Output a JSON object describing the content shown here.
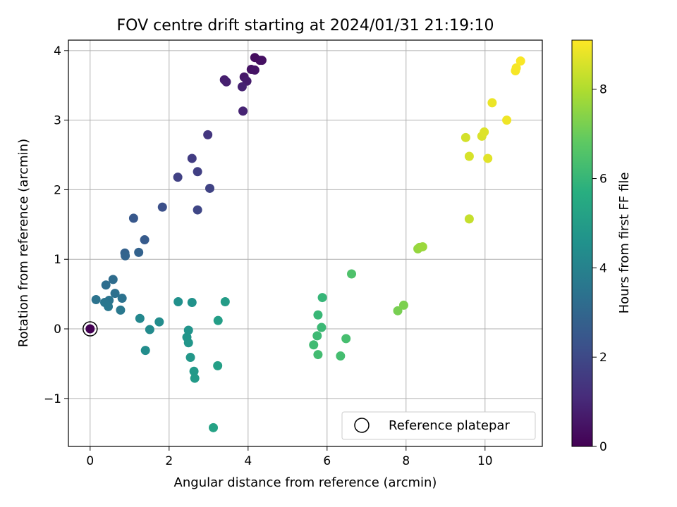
{
  "chart_data": {
    "type": "scatter",
    "title": "FOV centre drift starting at 2024/01/31 21:19:10",
    "xlabel": "Angular distance from reference (arcmin)",
    "ylabel": "Rotation from reference (arcmin)",
    "xlim": [
      -0.55,
      11.45
    ],
    "ylim": [
      -1.69,
      4.15
    ],
    "xticks": [
      0,
      2,
      4,
      6,
      8,
      10
    ],
    "yticks": [
      -1,
      0,
      1,
      2,
      3,
      4
    ],
    "grid": true,
    "colormap": "viridis",
    "colorbar": {
      "label": "Hours from first FF file",
      "range": [
        0,
        9.1
      ],
      "ticks": [
        0,
        2,
        4,
        6,
        8
      ]
    },
    "legend": {
      "position": "lower-right",
      "entries": [
        "Reference platepar"
      ]
    },
    "reference": {
      "x": 0,
      "y": 0,
      "hours": 0
    },
    "points": [
      {
        "x": 0.0,
        "y": 0.0,
        "h": 0.0
      },
      {
        "x": 4.17,
        "y": 3.9,
        "h": 0.3
      },
      {
        "x": 4.3,
        "y": 3.86,
        "h": 0.35
      },
      {
        "x": 4.35,
        "y": 3.86,
        "h": 0.4
      },
      {
        "x": 4.08,
        "y": 3.73,
        "h": 0.45
      },
      {
        "x": 4.17,
        "y": 3.72,
        "h": 0.5
      },
      {
        "x": 3.9,
        "y": 3.62,
        "h": 0.6
      },
      {
        "x": 3.97,
        "y": 3.56,
        "h": 0.7
      },
      {
        "x": 3.4,
        "y": 3.58,
        "h": 0.75
      },
      {
        "x": 3.45,
        "y": 3.55,
        "h": 0.8
      },
      {
        "x": 3.85,
        "y": 3.48,
        "h": 0.85
      },
      {
        "x": 3.87,
        "y": 3.13,
        "h": 0.9
      },
      {
        "x": 2.98,
        "y": 2.79,
        "h": 1.4
      },
      {
        "x": 2.58,
        "y": 2.45,
        "h": 1.6
      },
      {
        "x": 2.72,
        "y": 2.26,
        "h": 1.7
      },
      {
        "x": 2.22,
        "y": 2.18,
        "h": 1.75
      },
      {
        "x": 3.03,
        "y": 2.02,
        "h": 1.8
      },
      {
        "x": 2.72,
        "y": 1.71,
        "h": 1.9
      },
      {
        "x": 1.83,
        "y": 1.75,
        "h": 2.2
      },
      {
        "x": 1.1,
        "y": 1.59,
        "h": 2.5
      },
      {
        "x": 1.38,
        "y": 1.28,
        "h": 2.6
      },
      {
        "x": 0.88,
        "y": 1.09,
        "h": 2.8
      },
      {
        "x": 1.23,
        "y": 1.1,
        "h": 2.85
      },
      {
        "x": 0.89,
        "y": 1.05,
        "h": 2.9
      },
      {
        "x": 0.58,
        "y": 0.71,
        "h": 3.2
      },
      {
        "x": 0.4,
        "y": 0.63,
        "h": 3.25
      },
      {
        "x": 0.63,
        "y": 0.51,
        "h": 3.35
      },
      {
        "x": 0.81,
        "y": 0.44,
        "h": 3.4
      },
      {
        "x": 0.15,
        "y": 0.42,
        "h": 3.45
      },
      {
        "x": 0.48,
        "y": 0.41,
        "h": 3.5
      },
      {
        "x": 0.37,
        "y": 0.38,
        "h": 3.55
      },
      {
        "x": 0.46,
        "y": 0.32,
        "h": 3.6
      },
      {
        "x": 0.77,
        "y": 0.27,
        "h": 3.65
      },
      {
        "x": 1.26,
        "y": 0.15,
        "h": 4.2
      },
      {
        "x": 1.51,
        "y": -0.01,
        "h": 4.3
      },
      {
        "x": 1.75,
        "y": 0.1,
        "h": 4.35
      },
      {
        "x": 1.4,
        "y": -0.31,
        "h": 4.4
      },
      {
        "x": 2.23,
        "y": 0.39,
        "h": 4.5
      },
      {
        "x": 2.58,
        "y": 0.38,
        "h": 4.6
      },
      {
        "x": 2.49,
        "y": -0.02,
        "h": 4.65
      },
      {
        "x": 2.45,
        "y": -0.12,
        "h": 4.7
      },
      {
        "x": 2.49,
        "y": -0.2,
        "h": 4.75
      },
      {
        "x": 2.54,
        "y": -0.41,
        "h": 4.8
      },
      {
        "x": 2.63,
        "y": -0.61,
        "h": 4.85
      },
      {
        "x": 2.65,
        "y": -0.71,
        "h": 4.9
      },
      {
        "x": 3.42,
        "y": 0.39,
        "h": 5.0
      },
      {
        "x": 3.24,
        "y": 0.12,
        "h": 5.05
      },
      {
        "x": 3.23,
        "y": -0.53,
        "h": 5.1
      },
      {
        "x": 3.12,
        "y": -1.42,
        "h": 5.2
      },
      {
        "x": 5.88,
        "y": 0.45,
        "h": 6.0
      },
      {
        "x": 5.77,
        "y": 0.2,
        "h": 6.05
      },
      {
        "x": 5.86,
        "y": 0.02,
        "h": 6.1
      },
      {
        "x": 5.75,
        "y": -0.1,
        "h": 6.15
      },
      {
        "x": 5.66,
        "y": -0.23,
        "h": 6.2
      },
      {
        "x": 5.77,
        "y": -0.37,
        "h": 6.25
      },
      {
        "x": 6.34,
        "y": -0.39,
        "h": 6.3
      },
      {
        "x": 6.48,
        "y": -0.14,
        "h": 6.35
      },
      {
        "x": 6.62,
        "y": 0.79,
        "h": 6.5
      },
      {
        "x": 7.79,
        "y": 0.26,
        "h": 7.2
      },
      {
        "x": 7.94,
        "y": 0.34,
        "h": 7.25
      },
      {
        "x": 8.3,
        "y": 1.15,
        "h": 7.6
      },
      {
        "x": 8.34,
        "y": 1.17,
        "h": 7.65
      },
      {
        "x": 8.42,
        "y": 1.18,
        "h": 7.7
      },
      {
        "x": 9.6,
        "y": 1.58,
        "h": 8.3
      },
      {
        "x": 9.51,
        "y": 2.75,
        "h": 8.5
      },
      {
        "x": 9.6,
        "y": 2.48,
        "h": 8.55
      },
      {
        "x": 9.92,
        "y": 2.77,
        "h": 8.6
      },
      {
        "x": 9.98,
        "y": 2.83,
        "h": 8.65
      },
      {
        "x": 10.07,
        "y": 2.45,
        "h": 8.7
      },
      {
        "x": 10.18,
        "y": 3.25,
        "h": 8.85
      },
      {
        "x": 10.55,
        "y": 3.0,
        "h": 8.9
      },
      {
        "x": 10.77,
        "y": 3.71,
        "h": 9.0
      },
      {
        "x": 10.79,
        "y": 3.75,
        "h": 9.0
      },
      {
        "x": 10.9,
        "y": 3.85,
        "h": 9.05
      }
    ]
  }
}
